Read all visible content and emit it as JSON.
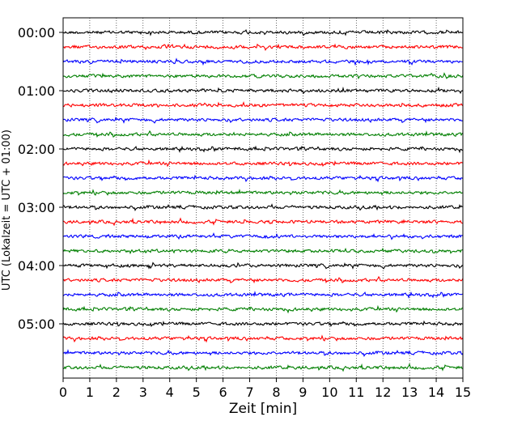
{
  "chart_data": {
    "type": "line",
    "title": "",
    "xlabel": "Zeit  [min]",
    "ylabel": "UTC (Lokalzeit = UTC + 01:00)",
    "xlim": [
      0,
      15
    ],
    "x_ticks": [
      "0",
      "1",
      "2",
      "3",
      "4",
      "5",
      "6",
      "7",
      "8",
      "9",
      "10",
      "11",
      "12",
      "13",
      "14",
      "15"
    ],
    "y_ticks": [
      "00:00",
      "01:00",
      "02:00",
      "03:00",
      "04:00",
      "05:00"
    ],
    "grid": "vertical dotted",
    "line_colors": [
      "#000000",
      "#ff0000",
      "#0000ff",
      "#007f00"
    ],
    "traces": [
      {
        "start": "00:00",
        "color": "#000000"
      },
      {
        "start": "00:15",
        "color": "#ff0000"
      },
      {
        "start": "00:30",
        "color": "#0000ff"
      },
      {
        "start": "00:45",
        "color": "#007f00"
      },
      {
        "start": "01:00",
        "color": "#000000"
      },
      {
        "start": "01:15",
        "color": "#ff0000"
      },
      {
        "start": "01:30",
        "color": "#0000ff"
      },
      {
        "start": "01:45",
        "color": "#007f00"
      },
      {
        "start": "02:00",
        "color": "#000000"
      },
      {
        "start": "02:15",
        "color": "#ff0000"
      },
      {
        "start": "02:30",
        "color": "#0000ff"
      },
      {
        "start": "02:45",
        "color": "#007f00"
      },
      {
        "start": "03:00",
        "color": "#000000"
      },
      {
        "start": "03:15",
        "color": "#ff0000"
      },
      {
        "start": "03:30",
        "color": "#0000ff"
      },
      {
        "start": "03:45",
        "color": "#007f00"
      },
      {
        "start": "04:00",
        "color": "#000000"
      },
      {
        "start": "04:15",
        "color": "#ff0000"
      },
      {
        "start": "04:30",
        "color": "#0000ff"
      },
      {
        "start": "04:45",
        "color": "#007f00"
      },
      {
        "start": "05:00",
        "color": "#000000"
      },
      {
        "start": "05:15",
        "color": "#ff0000"
      },
      {
        "start": "05:30",
        "color": "#0000ff"
      },
      {
        "start": "05:45",
        "color": "#007f00"
      }
    ]
  }
}
